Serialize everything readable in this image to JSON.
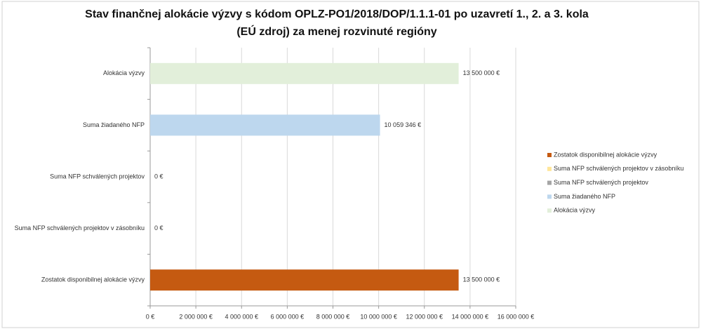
{
  "chart_data": {
    "type": "bar",
    "orientation": "horizontal",
    "title": [
      "Stav finančnej alokácie výzvy s kódom OPLZ-PO1/2018/DOP/1.1.1-01 po uzavretí 1., 2. a 3. kola",
      "(EÚ zdroj) za menej rozvinuté regióny"
    ],
    "categories": [
      "Alokácia výzvy",
      "Suma žiadaného NFP",
      "Suma NFP schválených projektov",
      "Suma NFP schválených projektov v zásobníku",
      "Zostatok disponibilnej alokácie výzvy"
    ],
    "series": [
      {
        "name": "Zostatok disponibilnej alokácie výzvy",
        "color": "#c55a11",
        "values": [
          null,
          null,
          null,
          null,
          13500000
        ],
        "value_labels": [
          null,
          null,
          null,
          null,
          "13 500 000 €"
        ]
      },
      {
        "name": "Suma NFP schválených projektov v zásobníku",
        "color": "#ffe699",
        "values": [
          null,
          null,
          null,
          0,
          null
        ],
        "value_labels": [
          null,
          null,
          null,
          "0 €",
          null
        ]
      },
      {
        "name": "Suma NFP schválených projektov",
        "color": "#a5a5a5",
        "values": [
          null,
          null,
          0,
          null,
          null
        ],
        "value_labels": [
          null,
          null,
          "0 €",
          null,
          null
        ]
      },
      {
        "name": "Suma žiadaného NFP",
        "color": "#bdd7ee",
        "values": [
          null,
          10059346,
          null,
          null,
          null
        ],
        "value_labels": [
          null,
          "10 059 346 €",
          null,
          null,
          null
        ]
      },
      {
        "name": "Alokácia výzvy",
        "color": "#e2efda",
        "values": [
          13500000,
          null,
          null,
          null,
          null
        ],
        "value_labels": [
          "13 500 000 €",
          null,
          null,
          null,
          null
        ]
      }
    ],
    "xlim": [
      0,
      16000000
    ],
    "xticks": [
      {
        "value": 0,
        "label": "0 €"
      },
      {
        "value": 2000000,
        "label": "2 000 000 €"
      },
      {
        "value": 4000000,
        "label": "4 000 000 €"
      },
      {
        "value": 6000000,
        "label": "6 000 000 €"
      },
      {
        "value": 8000000,
        "label": "8 000 000 €"
      },
      {
        "value": 10000000,
        "label": "10 000 000 €"
      },
      {
        "value": 12000000,
        "label": "12 000 000 €"
      },
      {
        "value": 14000000,
        "label": "14 000 000 €"
      },
      {
        "value": 16000000,
        "label": "16 000 000 €"
      }
    ],
    "grid": true,
    "legend": "right"
  }
}
